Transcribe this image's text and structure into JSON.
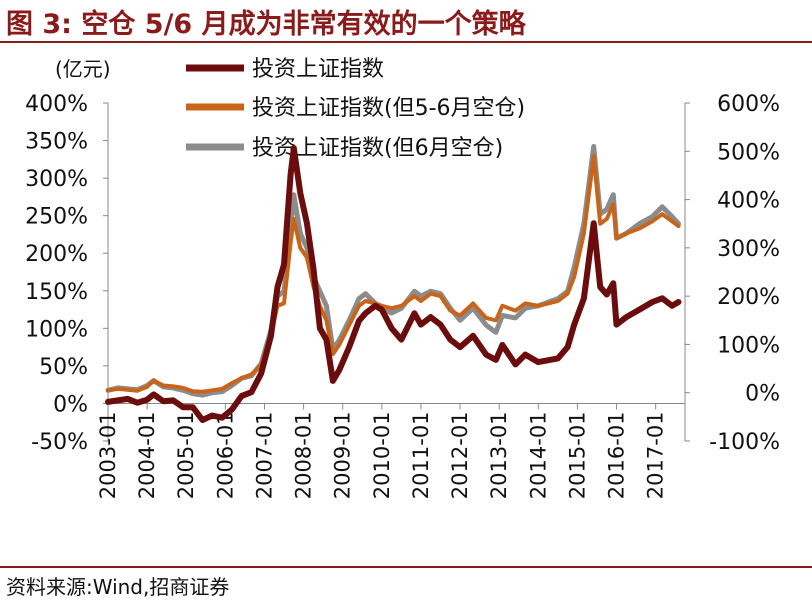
{
  "figure": {
    "title": "图 3:  空仓 5/6 月成为非常有效的一个策略",
    "source": "资料来源:Wind,招商证券"
  },
  "colors": {
    "title": "#8b1a1a",
    "series_main": "#6b0d0d",
    "series_no56": "#c8651a",
    "series_no6": "#8c8c8c"
  },
  "chart_data": {
    "type": "line",
    "title": "",
    "xlabel": "",
    "ylabel_left": "(亿元)",
    "ylabel_right": "",
    "legend_position": "top-left",
    "grid": false,
    "left_axis": {
      "ylim": [
        -0.5,
        4.0
      ],
      "ticks": [
        "-50%",
        "0%",
        "50%",
        "100%",
        "150%",
        "200%",
        "250%",
        "300%",
        "350%",
        "400%"
      ]
    },
    "right_axis": {
      "ylim": [
        -1.0,
        6.0
      ],
      "ticks": [
        "-100%",
        "0%",
        "100%",
        "200%",
        "300%",
        "400%",
        "500%",
        "600%"
      ]
    },
    "x_ticks": [
      "2003-01",
      "2004-01",
      "2005-01",
      "2006-01",
      "2007-01",
      "2008-01",
      "2009-01",
      "2010-01",
      "2011-01",
      "2012-01",
      "2013-01",
      "2014-01",
      "2015-01",
      "2016-01",
      "2017-01"
    ],
    "series": [
      {
        "name": "投资上证指数",
        "axis": "left",
        "points": [
          [
            "2003-01",
            0.02
          ],
          [
            "2003-04",
            0.04
          ],
          [
            "2003-07",
            0.06
          ],
          [
            "2003-10",
            0.01
          ],
          [
            "2004-01",
            0.05
          ],
          [
            "2004-03",
            0.12
          ],
          [
            "2004-06",
            0.03
          ],
          [
            "2004-09",
            0.04
          ],
          [
            "2004-12",
            -0.05
          ],
          [
            "2005-03",
            -0.05
          ],
          [
            "2005-06",
            -0.22
          ],
          [
            "2005-09",
            -0.16
          ],
          [
            "2005-12",
            -0.19
          ],
          [
            "2006-03",
            -0.08
          ],
          [
            "2006-06",
            0.1
          ],
          [
            "2006-09",
            0.15
          ],
          [
            "2006-12",
            0.4
          ],
          [
            "2007-03",
            0.9
          ],
          [
            "2007-05",
            1.55
          ],
          [
            "2007-07",
            1.85
          ],
          [
            "2007-09",
            3.05
          ],
          [
            "2007-10",
            3.4
          ],
          [
            "2007-12",
            2.8
          ],
          [
            "2008-02",
            2.4
          ],
          [
            "2008-04",
            1.8
          ],
          [
            "2008-06",
            1.0
          ],
          [
            "2008-08",
            0.85
          ],
          [
            "2008-10",
            0.3
          ],
          [
            "2008-12",
            0.45
          ],
          [
            "2009-03",
            0.75
          ],
          [
            "2009-06",
            1.1
          ],
          [
            "2009-08",
            1.2
          ],
          [
            "2009-11",
            1.3
          ],
          [
            "2010-01",
            1.25
          ],
          [
            "2010-04",
            1.0
          ],
          [
            "2010-07",
            0.85
          ],
          [
            "2010-11",
            1.2
          ],
          [
            "2011-01",
            1.05
          ],
          [
            "2011-04",
            1.15
          ],
          [
            "2011-07",
            1.05
          ],
          [
            "2011-10",
            0.85
          ],
          [
            "2012-01",
            0.75
          ],
          [
            "2012-05",
            0.9
          ],
          [
            "2012-09",
            0.65
          ],
          [
            "2012-12",
            0.58
          ],
          [
            "2013-02",
            0.78
          ],
          [
            "2013-06",
            0.52
          ],
          [
            "2013-09",
            0.65
          ],
          [
            "2014-01",
            0.55
          ],
          [
            "2014-07",
            0.6
          ],
          [
            "2014-10",
            0.75
          ],
          [
            "2014-12",
            1.05
          ],
          [
            "2015-03",
            1.4
          ],
          [
            "2015-06",
            2.4
          ],
          [
            "2015-08",
            1.55
          ],
          [
            "2015-10",
            1.45
          ],
          [
            "2015-12",
            1.6
          ],
          [
            "2016-01",
            1.05
          ],
          [
            "2016-04",
            1.15
          ],
          [
            "2016-08",
            1.25
          ],
          [
            "2016-12",
            1.35
          ],
          [
            "2017-03",
            1.4
          ],
          [
            "2017-06",
            1.3
          ],
          [
            "2017-08",
            1.35
          ]
        ]
      },
      {
        "name": "投资上证指数(但5-6月空仓)",
        "axis": "right",
        "points": [
          [
            "2003-01",
            0.05
          ],
          [
            "2003-04",
            0.08
          ],
          [
            "2003-07",
            0.06
          ],
          [
            "2003-10",
            0.04
          ],
          [
            "2004-01",
            0.12
          ],
          [
            "2004-03",
            0.25
          ],
          [
            "2004-06",
            0.15
          ],
          [
            "2004-09",
            0.13
          ],
          [
            "2004-12",
            0.1
          ],
          [
            "2005-03",
            0.03
          ],
          [
            "2005-06",
            0.02
          ],
          [
            "2005-09",
            0.05
          ],
          [
            "2005-12",
            0.08
          ],
          [
            "2006-03",
            0.2
          ],
          [
            "2006-06",
            0.3
          ],
          [
            "2006-09",
            0.38
          ],
          [
            "2006-12",
            0.58
          ],
          [
            "2007-03",
            1.2
          ],
          [
            "2007-05",
            1.8
          ],
          [
            "2007-07",
            1.85
          ],
          [
            "2007-09",
            3.1
          ],
          [
            "2007-10",
            3.6
          ],
          [
            "2007-12",
            3.0
          ],
          [
            "2008-02",
            2.8
          ],
          [
            "2008-04",
            2.2
          ],
          [
            "2008-06",
            1.8
          ],
          [
            "2008-08",
            1.5
          ],
          [
            "2008-10",
            0.8
          ],
          [
            "2008-12",
            1.0
          ],
          [
            "2009-03",
            1.4
          ],
          [
            "2009-06",
            1.8
          ],
          [
            "2009-08",
            1.9
          ],
          [
            "2009-11",
            1.85
          ],
          [
            "2010-01",
            1.8
          ],
          [
            "2010-04",
            1.75
          ],
          [
            "2010-07",
            1.8
          ],
          [
            "2010-11",
            2.0
          ],
          [
            "2011-01",
            1.9
          ],
          [
            "2011-04",
            2.05
          ],
          [
            "2011-07",
            2.0
          ],
          [
            "2011-10",
            1.7
          ],
          [
            "2012-01",
            1.6
          ],
          [
            "2012-05",
            1.85
          ],
          [
            "2012-09",
            1.55
          ],
          [
            "2012-12",
            1.5
          ],
          [
            "2013-02",
            1.8
          ],
          [
            "2013-06",
            1.7
          ],
          [
            "2013-09",
            1.85
          ],
          [
            "2014-01",
            1.8
          ],
          [
            "2014-07",
            1.9
          ],
          [
            "2014-10",
            2.05
          ],
          [
            "2014-12",
            2.4
          ],
          [
            "2015-03",
            3.3
          ],
          [
            "2015-06",
            4.9
          ],
          [
            "2015-08",
            3.5
          ],
          [
            "2015-10",
            3.6
          ],
          [
            "2015-12",
            3.9
          ],
          [
            "2016-01",
            3.2
          ],
          [
            "2016-04",
            3.3
          ],
          [
            "2016-08",
            3.4
          ],
          [
            "2016-12",
            3.55
          ],
          [
            "2017-03",
            3.7
          ],
          [
            "2017-06",
            3.55
          ],
          [
            "2017-08",
            3.45
          ]
        ]
      },
      {
        "name": "投资上证指数(但6月空仓)",
        "axis": "right",
        "points": [
          [
            "2003-01",
            0.05
          ],
          [
            "2003-04",
            0.1
          ],
          [
            "2003-07",
            0.08
          ],
          [
            "2003-10",
            0.06
          ],
          [
            "2004-01",
            0.15
          ],
          [
            "2004-03",
            0.25
          ],
          [
            "2004-06",
            0.12
          ],
          [
            "2004-09",
            0.1
          ],
          [
            "2004-12",
            0.05
          ],
          [
            "2005-03",
            -0.02
          ],
          [
            "2005-06",
            -0.05
          ],
          [
            "2005-09",
            0.0
          ],
          [
            "2005-12",
            0.02
          ],
          [
            "2006-03",
            0.15
          ],
          [
            "2006-06",
            0.3
          ],
          [
            "2006-09",
            0.35
          ],
          [
            "2006-12",
            0.6
          ],
          [
            "2007-03",
            1.3
          ],
          [
            "2007-05",
            2.0
          ],
          [
            "2007-07",
            2.1
          ],
          [
            "2007-09",
            3.4
          ],
          [
            "2007-10",
            4.1
          ],
          [
            "2007-12",
            3.3
          ],
          [
            "2008-02",
            3.0
          ],
          [
            "2008-04",
            2.4
          ],
          [
            "2008-06",
            2.1
          ],
          [
            "2008-08",
            1.8
          ],
          [
            "2008-10",
            0.9
          ],
          [
            "2008-12",
            1.1
          ],
          [
            "2009-03",
            1.5
          ],
          [
            "2009-06",
            1.95
          ],
          [
            "2009-08",
            2.05
          ],
          [
            "2009-11",
            1.85
          ],
          [
            "2010-01",
            1.75
          ],
          [
            "2010-04",
            1.65
          ],
          [
            "2010-07",
            1.75
          ],
          [
            "2010-11",
            2.1
          ],
          [
            "2011-01",
            2.0
          ],
          [
            "2011-04",
            2.1
          ],
          [
            "2011-07",
            2.05
          ],
          [
            "2011-10",
            1.75
          ],
          [
            "2012-01",
            1.5
          ],
          [
            "2012-05",
            1.75
          ],
          [
            "2012-09",
            1.4
          ],
          [
            "2012-12",
            1.25
          ],
          [
            "2013-02",
            1.6
          ],
          [
            "2013-06",
            1.55
          ],
          [
            "2013-09",
            1.75
          ],
          [
            "2014-01",
            1.8
          ],
          [
            "2014-07",
            1.95
          ],
          [
            "2014-10",
            2.1
          ],
          [
            "2014-12",
            2.6
          ],
          [
            "2015-03",
            3.5
          ],
          [
            "2015-06",
            5.1
          ],
          [
            "2015-08",
            3.7
          ],
          [
            "2015-10",
            3.8
          ],
          [
            "2015-12",
            4.1
          ],
          [
            "2016-01",
            3.2
          ],
          [
            "2016-04",
            3.3
          ],
          [
            "2016-08",
            3.5
          ],
          [
            "2016-12",
            3.65
          ],
          [
            "2017-03",
            3.85
          ],
          [
            "2017-06",
            3.65
          ],
          [
            "2017-08",
            3.5
          ]
        ]
      }
    ]
  }
}
